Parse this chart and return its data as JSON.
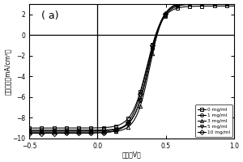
{
  "title": "( a)",
  "xlabel": "电压（V）",
  "ylabel": "电流密度（mA/cm²）",
  "xlim": [
    -0.5,
    1.0
  ],
  "ylim": [
    -10,
    3
  ],
  "xticks": [
    -0.5,
    0.0,
    0.5,
    1.0
  ],
  "yticks": [
    -10,
    -8,
    -6,
    -4,
    -2,
    0,
    2
  ],
  "legend_labels": [
    "0 mg/ml",
    "1 mg/ml",
    "3 mg/ml",
    "5 mg/ml",
    "10 mg/ml"
  ],
  "markers": [
    "s",
    "o",
    "^",
    "v",
    "D"
  ],
  "bg_color": "#ffffff",
  "line_color": "#000000",
  "curves": [
    {
      "Jsc": -9.0,
      "Voc": 0.5,
      "slope": 18,
      "Jph_max": 2.8
    },
    {
      "Jsc": -9.3,
      "Voc": 0.515,
      "slope": 19,
      "Jph_max": 3.1
    },
    {
      "Jsc": -9.4,
      "Voc": 0.53,
      "slope": 20,
      "Jph_max": 3.2
    },
    {
      "Jsc": -9.2,
      "Voc": 0.52,
      "slope": 19,
      "Jph_max": 3.0
    },
    {
      "Jsc": -9.5,
      "Voc": 0.505,
      "slope": 17,
      "Jph_max": 3.3
    }
  ]
}
